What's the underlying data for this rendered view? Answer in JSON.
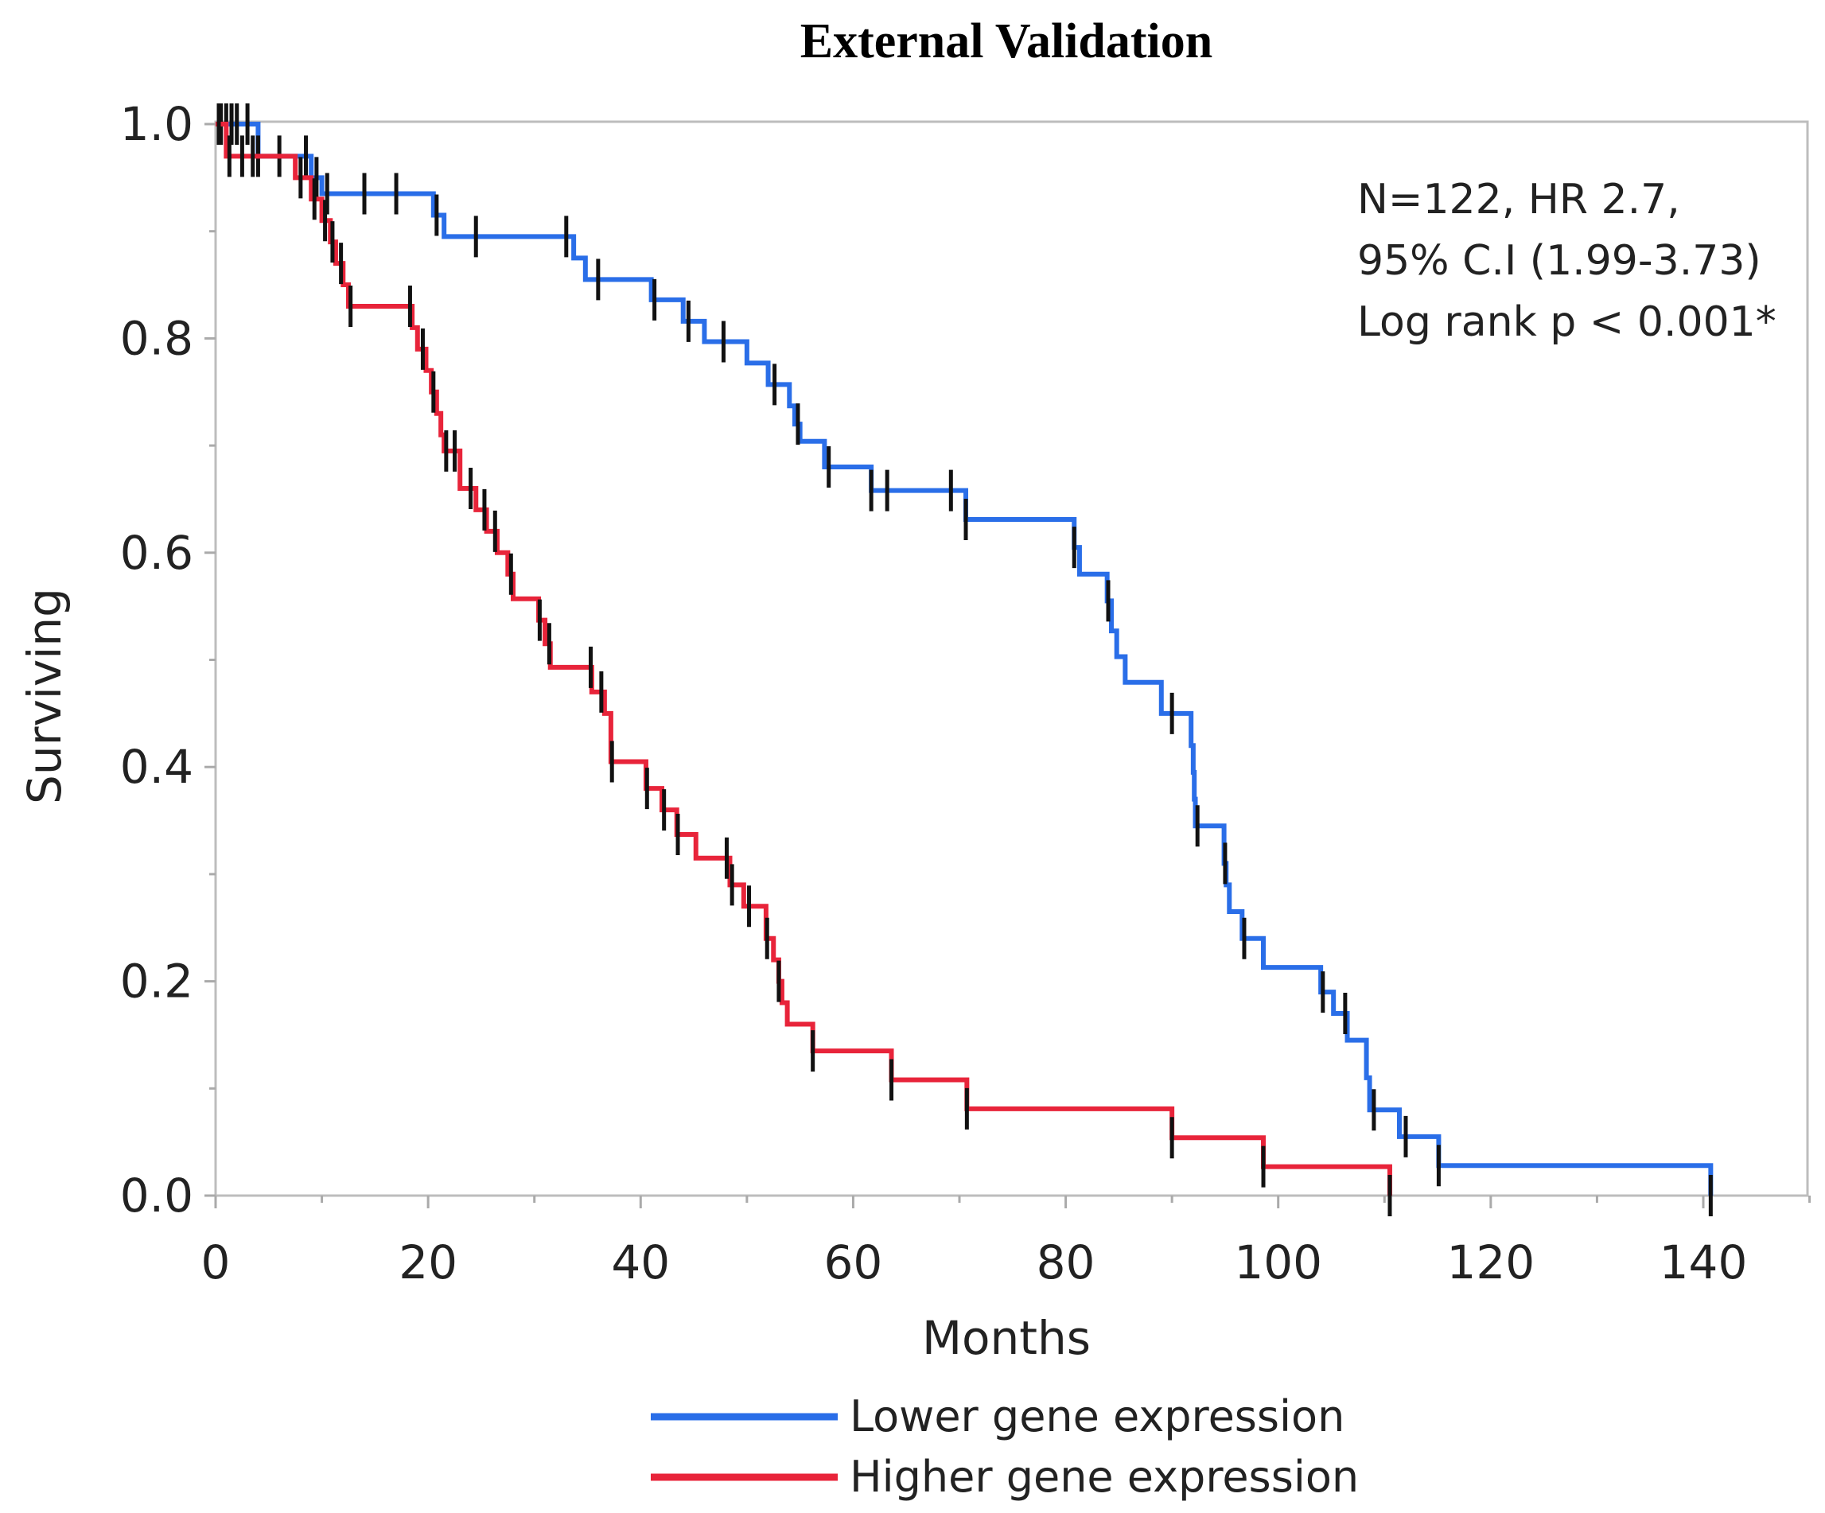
{
  "chart_data": {
    "type": "line",
    "subtype": "kaplan-meier step",
    "title": "External Validation",
    "xlabel": "Months",
    "ylabel": "Surviving",
    "xlim": [
      0,
      150
    ],
    "ylim": [
      0,
      1.0
    ],
    "x_ticks": [
      0,
      20,
      40,
      60,
      80,
      100,
      120,
      140
    ],
    "y_ticks": [
      0.0,
      0.2,
      0.4,
      0.6,
      0.8,
      1.0
    ],
    "x_tick_labels": [
      "0",
      "20",
      "40",
      "60",
      "80",
      "100",
      "120",
      "140"
    ],
    "y_tick_labels": [
      "0.0",
      "0.2",
      "0.4",
      "0.6",
      "0.8",
      "1.0"
    ],
    "grid": false,
    "legend_position": "bottom-center",
    "annotation": [
      "N=122, HR 2.7,",
      "95% C.I (1.99-3.73)",
      "Log rank p < 0.001*"
    ],
    "series": [
      {
        "name": "Lower gene expression",
        "color": "#2a6ee8",
        "steps": [
          [
            0,
            1.0
          ],
          [
            4,
            0.97
          ],
          [
            9,
            0.95
          ],
          [
            10,
            0.935
          ],
          [
            20.5,
            0.915
          ],
          [
            21.5,
            0.895
          ],
          [
            33.7,
            0.875
          ],
          [
            34.8,
            0.855
          ],
          [
            41,
            0.836
          ],
          [
            44,
            0.816
          ],
          [
            46,
            0.797
          ],
          [
            50,
            0.777
          ],
          [
            52,
            0.757
          ],
          [
            54,
            0.737
          ],
          [
            54.5,
            0.72
          ],
          [
            55,
            0.704
          ],
          [
            57.3,
            0.68
          ],
          [
            61.7,
            0.658
          ],
          [
            70.6,
            0.631
          ],
          [
            80.8,
            0.605
          ],
          [
            81.3,
            0.58
          ],
          [
            83.9,
            0.555
          ],
          [
            84.3,
            0.527
          ],
          [
            84.8,
            0.503
          ],
          [
            85.6,
            0.479
          ],
          [
            89,
            0.45
          ],
          [
            91.8,
            0.42
          ],
          [
            92,
            0.395
          ],
          [
            92.1,
            0.37
          ],
          [
            92.2,
            0.345
          ],
          [
            94.9,
            0.31
          ],
          [
            95.1,
            0.29
          ],
          [
            95.4,
            0.265
          ],
          [
            96.6,
            0.24
          ],
          [
            98.6,
            0.213
          ],
          [
            104,
            0.19
          ],
          [
            105.2,
            0.17
          ],
          [
            106.5,
            0.145
          ],
          [
            108.3,
            0.11
          ],
          [
            108.6,
            0.08
          ],
          [
            111.4,
            0.055
          ],
          [
            115.1,
            0.028
          ],
          [
            140.7,
            0.0
          ]
        ],
        "censored": [
          0.5,
          1,
          1.5,
          2,
          3,
          4,
          6,
          8.5,
          9.5,
          10.5,
          14,
          17,
          20.8,
          24.5,
          33,
          36,
          41.3,
          44.5,
          47.8,
          52.6,
          54.8,
          57.7,
          61.7,
          63.2,
          69.2,
          70.6,
          80.8,
          84,
          90,
          92.4,
          95,
          96.8,
          104.2,
          106.3,
          109,
          112,
          115.1,
          140.7
        ]
      },
      {
        "name": "Higher gene expression",
        "color": "#e8243a",
        "steps": [
          [
            0,
            1.0
          ],
          [
            1,
            0.97
          ],
          [
            7.5,
            0.95
          ],
          [
            9,
            0.93
          ],
          [
            10,
            0.91
          ],
          [
            10.8,
            0.89
          ],
          [
            11.3,
            0.87
          ],
          [
            12,
            0.85
          ],
          [
            12.5,
            0.83
          ],
          [
            18.5,
            0.81
          ],
          [
            19,
            0.79
          ],
          [
            19.8,
            0.77
          ],
          [
            20.3,
            0.75
          ],
          [
            20.8,
            0.73
          ],
          [
            21.2,
            0.71
          ],
          [
            21.5,
            0.695
          ],
          [
            23,
            0.66
          ],
          [
            24.5,
            0.64
          ],
          [
            25.5,
            0.62
          ],
          [
            26.5,
            0.6
          ],
          [
            27.5,
            0.58
          ],
          [
            28,
            0.557
          ],
          [
            30.4,
            0.537
          ],
          [
            31,
            0.515
          ],
          [
            31.5,
            0.493
          ],
          [
            35.4,
            0.47
          ],
          [
            36.6,
            0.45
          ],
          [
            37.2,
            0.405
          ],
          [
            40.5,
            0.38
          ],
          [
            42,
            0.36
          ],
          [
            43.4,
            0.337
          ],
          [
            45.2,
            0.315
          ],
          [
            48.4,
            0.29
          ],
          [
            49.7,
            0.27
          ],
          [
            51.8,
            0.24
          ],
          [
            52.5,
            0.22
          ],
          [
            53,
            0.2
          ],
          [
            53.3,
            0.18
          ],
          [
            53.8,
            0.16
          ],
          [
            56.2,
            0.135
          ],
          [
            63.6,
            0.108
          ],
          [
            70.7,
            0.081
          ],
          [
            90,
            0.054
          ],
          [
            98.6,
            0.027
          ],
          [
            110.5,
            0.0
          ]
        ],
        "censored": [
          0.3,
          1.3,
          2.5,
          3.5,
          8,
          9.3,
          10.3,
          11,
          11.8,
          12.7,
          18.3,
          19.5,
          20.5,
          21.7,
          22.5,
          24,
          25.3,
          26.3,
          27.8,
          30.5,
          31.4,
          35.3,
          36.3,
          37.3,
          40.6,
          42.2,
          43.5,
          48.1,
          48.6,
          50.2,
          51.9,
          53,
          56.2,
          63.6,
          70.7,
          90,
          98.6,
          110.5
        ]
      }
    ]
  }
}
